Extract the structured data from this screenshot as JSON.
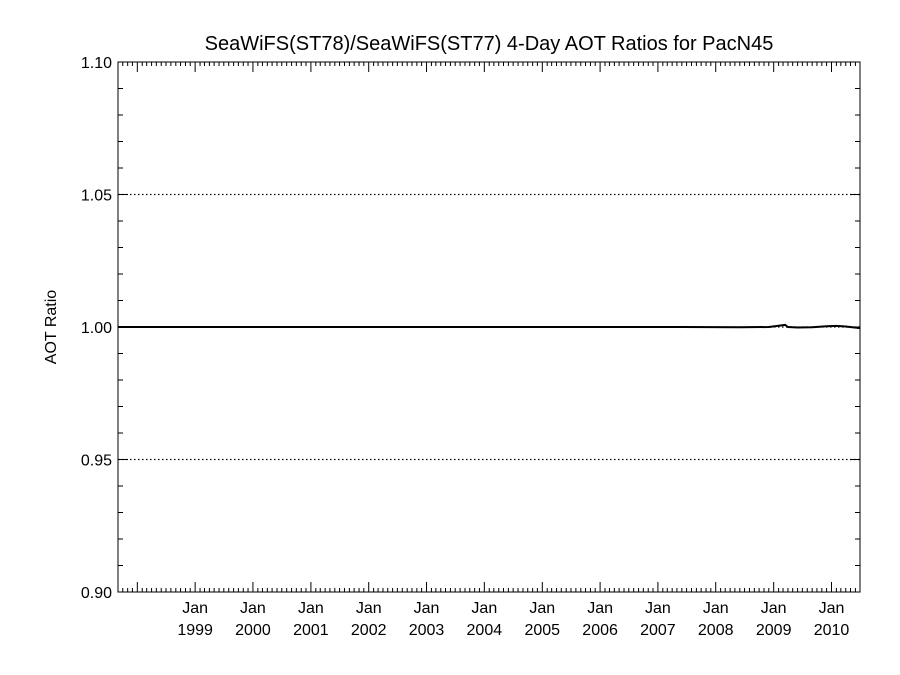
{
  "chart_data": {
    "type": "line",
    "title": "SeaWiFS(ST78)/SeaWiFS(ST77) 4-Day AOT Ratios for PacN45",
    "xlabel": "",
    "ylabel": "AOT Ratio",
    "xlim": [
      "1997-09-01",
      "2010-06-30"
    ],
    "ylim": [
      0.9,
      1.1
    ],
    "y_ticks": [
      "0.90",
      "0.95",
      "1.00",
      "1.05",
      "1.10"
    ],
    "x_ticks": [
      {
        "month": "Jan",
        "year": "1999",
        "date": "1999-01-01"
      },
      {
        "month": "Jan",
        "year": "2000",
        "date": "2000-01-01"
      },
      {
        "month": "Jan",
        "year": "2001",
        "date": "2001-01-01"
      },
      {
        "month": "Jan",
        "year": "2002",
        "date": "2002-01-01"
      },
      {
        "month": "Jan",
        "year": "2003",
        "date": "2003-01-01"
      },
      {
        "month": "Jan",
        "year": "2004",
        "date": "2004-01-01"
      },
      {
        "month": "Jan",
        "year": "2005",
        "date": "2005-01-01"
      },
      {
        "month": "Jan",
        "year": "2006",
        "date": "2006-01-01"
      },
      {
        "month": "Jan",
        "year": "2007",
        "date": "2007-01-01"
      },
      {
        "month": "Jan",
        "year": "2008",
        "date": "2008-01-01"
      },
      {
        "month": "Jan",
        "year": "2009",
        "date": "2009-01-01"
      },
      {
        "month": "Jan",
        "year": "2010",
        "date": "2010-01-01"
      }
    ],
    "grid_y": [
      0.95,
      1.0,
      1.05
    ],
    "grid_style": "dotted",
    "series": [
      {
        "x": [
          "1997-09-01",
          "1998-06-01",
          "1999-06-01",
          "2000-06-01",
          "2001-06-01",
          "2002-06-01",
          "2003-06-01",
          "2004-06-01",
          "2005-06-01",
          "2006-06-01",
          "2007-06-01",
          "2008-06-01",
          "2008-12-01",
          "2009-02-01",
          "2009-03-15",
          "2009-04-01",
          "2009-06-01",
          "2009-09-01",
          "2009-12-01",
          "2010-02-01",
          "2010-04-01",
          "2010-06-30"
        ],
        "y": [
          1.0,
          1.0,
          1.0,
          1.0,
          1.0,
          1.0,
          1.0,
          1.0,
          1.0,
          1.0,
          1.0,
          0.9999,
          1.0,
          1.0005,
          1.0008,
          1.0,
          0.9998,
          0.9999,
          1.0003,
          1.0004,
          1.0002,
          0.9996
        ],
        "color": "#000000"
      }
    ]
  }
}
